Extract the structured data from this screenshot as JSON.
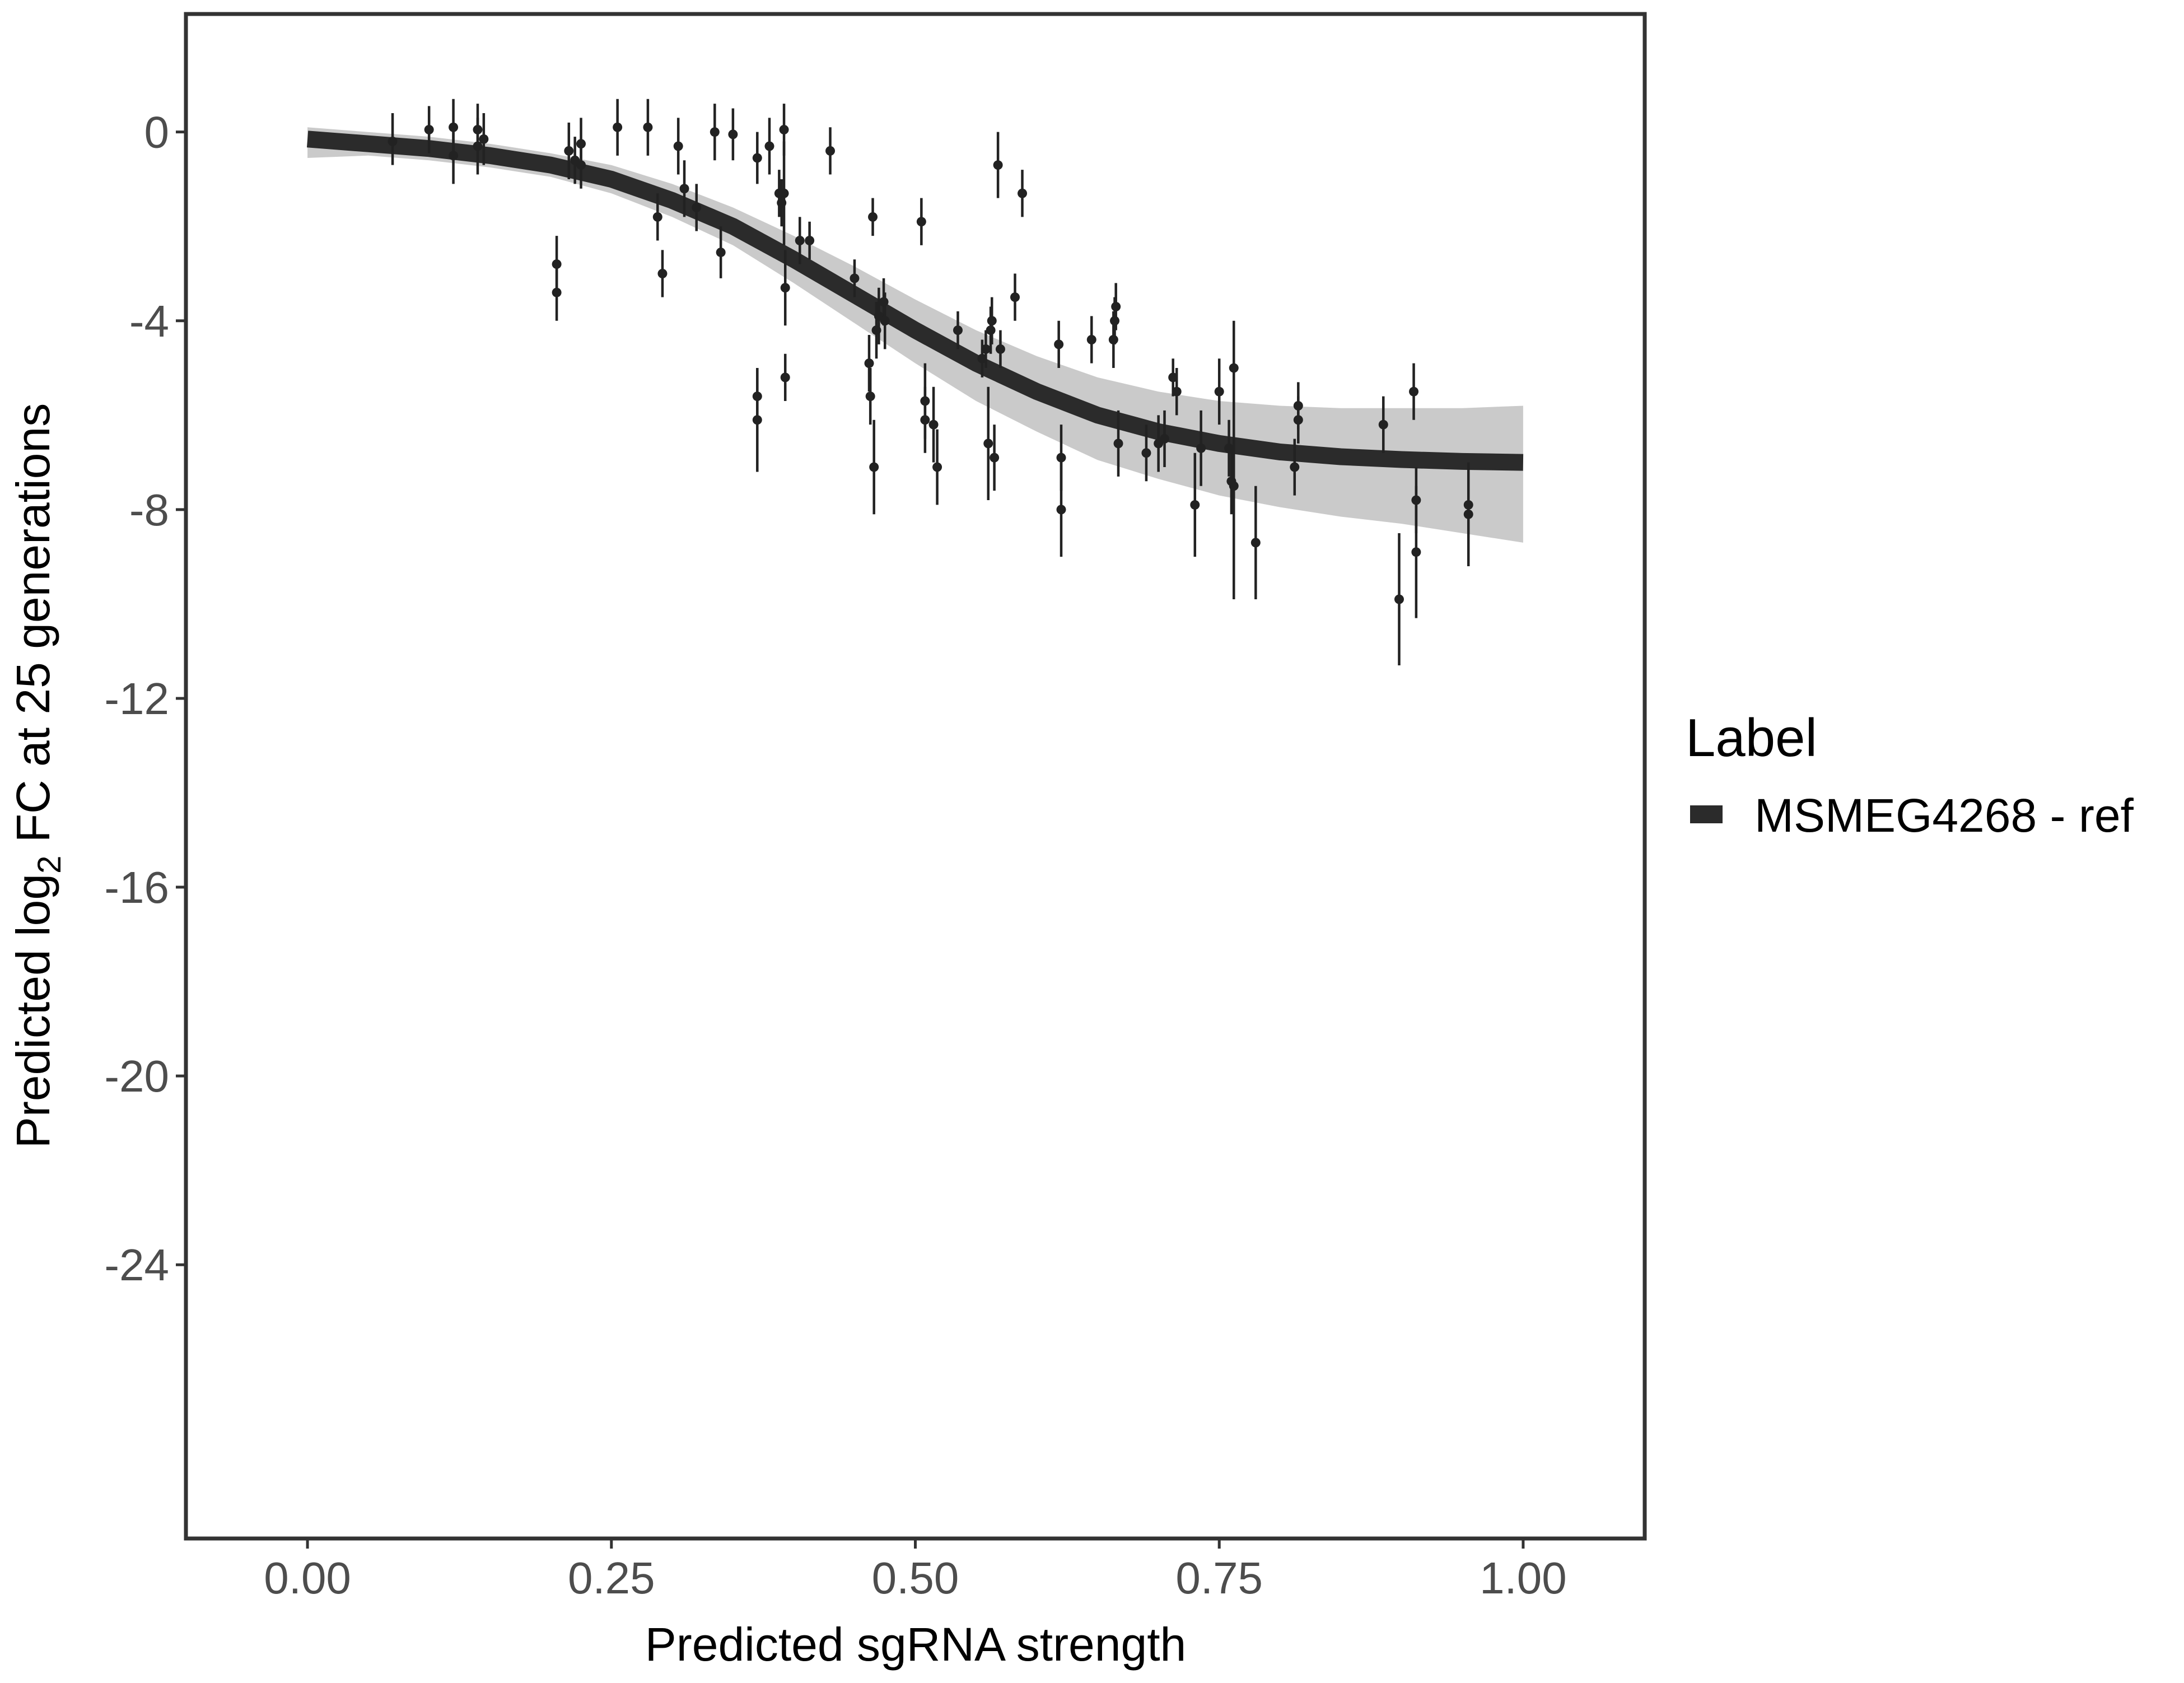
{
  "chart_data": {
    "type": "scatter",
    "title": "",
    "xlabel": "Predicted sgRNA strength",
    "ylabel": {
      "prefix": "Predicted  log",
      "subscript": "2",
      "suffix": " FC at 25 generations"
    },
    "xlim": [
      -0.1,
      1.1
    ],
    "ylim": [
      -29.8,
      2.5
    ],
    "x_ticks": [
      0.0,
      0.25,
      0.5,
      0.75,
      1.0
    ],
    "x_tick_labels": [
      "0.00",
      "0.25",
      "0.50",
      "0.75",
      "1.00"
    ],
    "y_ticks": [
      0,
      -4,
      -8,
      -12,
      -16,
      -20,
      -24
    ],
    "y_tick_labels": [
      "0",
      "-4",
      "-8",
      "-12",
      "-16",
      "-20",
      "-24"
    ],
    "grid": false,
    "legend": {
      "title": "Label",
      "position": "right",
      "entries": [
        {
          "label": "MSMEG4268 - ref",
          "color": "#2b2b2b"
        }
      ]
    },
    "colors": {
      "fit_line": "#2b2b2b",
      "ribbon": "#9e9e9e",
      "points": "#222222",
      "panel_border": "#333333",
      "tick_text": "#4d4d4d"
    },
    "fit_curve": {
      "name": "MSMEG4268 - ref",
      "x": [
        0.0,
        0.05,
        0.1,
        0.15,
        0.2,
        0.25,
        0.3,
        0.35,
        0.4,
        0.45,
        0.5,
        0.55,
        0.6,
        0.65,
        0.7,
        0.75,
        0.8,
        0.85,
        0.9,
        0.95,
        1.0
      ],
      "y": [
        -0.15,
        -0.25,
        -0.35,
        -0.5,
        -0.7,
        -1.0,
        -1.45,
        -2.0,
        -2.7,
        -3.45,
        -4.2,
        -4.9,
        -5.5,
        -6.0,
        -6.35,
        -6.6,
        -6.78,
        -6.88,
        -6.94,
        -6.98,
        -7.0
      ],
      "ribbon_lower": [
        -0.55,
        -0.5,
        -0.6,
        -0.75,
        -0.95,
        -1.3,
        -1.8,
        -2.4,
        -3.2,
        -4.05,
        -4.9,
        -5.7,
        -6.35,
        -6.95,
        -7.35,
        -7.7,
        -7.95,
        -8.15,
        -8.3,
        -8.5,
        -8.7
      ],
      "ribbon_upper": [
        0.1,
        0.0,
        -0.1,
        -0.25,
        -0.45,
        -0.7,
        -1.1,
        -1.6,
        -2.2,
        -2.85,
        -3.55,
        -4.2,
        -4.75,
        -5.2,
        -5.5,
        -5.7,
        -5.8,
        -5.85,
        -5.85,
        -5.85,
        -5.8
      ]
    },
    "points": [
      {
        "x": 0.07,
        "y": -0.2,
        "lo": -0.7,
        "hi": 0.4
      },
      {
        "x": 0.1,
        "y": 0.05,
        "lo": -0.45,
        "hi": 0.55
      },
      {
        "x": 0.12,
        "y": 0.1,
        "lo": -0.45,
        "hi": 0.7
      },
      {
        "x": 0.12,
        "y": -0.5,
        "lo": -1.1,
        "hi": 0.1
      },
      {
        "x": 0.14,
        "y": 0.05,
        "lo": -0.5,
        "hi": 0.6
      },
      {
        "x": 0.14,
        "y": -0.3,
        "lo": -0.9,
        "hi": 0.3
      },
      {
        "x": 0.145,
        "y": -0.15,
        "lo": -0.7,
        "hi": 0.4
      },
      {
        "x": 0.205,
        "y": -2.8,
        "lo": -3.4,
        "hi": -2.2
      },
      {
        "x": 0.205,
        "y": -3.4,
        "lo": -4.0,
        "hi": -2.8
      },
      {
        "x": 0.215,
        "y": -0.4,
        "lo": -1.0,
        "hi": 0.2
      },
      {
        "x": 0.22,
        "y": -0.6,
        "lo": -1.1,
        "hi": -0.1
      },
      {
        "x": 0.225,
        "y": -0.25,
        "lo": -0.8,
        "hi": 0.3
      },
      {
        "x": 0.225,
        "y": -0.7,
        "lo": -1.2,
        "hi": -0.2
      },
      {
        "x": 0.255,
        "y": 0.1,
        "lo": -0.5,
        "hi": 0.7
      },
      {
        "x": 0.28,
        "y": 0.1,
        "lo": -0.5,
        "hi": 0.7
      },
      {
        "x": 0.288,
        "y": -1.8,
        "lo": -2.3,
        "hi": -1.3
      },
      {
        "x": 0.292,
        "y": -3.0,
        "lo": -3.5,
        "hi": -2.5
      },
      {
        "x": 0.305,
        "y": -0.3,
        "lo": -0.9,
        "hi": 0.3
      },
      {
        "x": 0.31,
        "y": -1.2,
        "lo": -1.8,
        "hi": -0.6
      },
      {
        "x": 0.32,
        "y": -1.6,
        "lo": -2.1,
        "hi": -1.1
      },
      {
        "x": 0.335,
        "y": 0.0,
        "lo": -0.6,
        "hi": 0.6
      },
      {
        "x": 0.34,
        "y": -2.55,
        "lo": -3.1,
        "hi": -2.0
      },
      {
        "x": 0.35,
        "y": -0.05,
        "lo": -0.6,
        "hi": 0.5
      },
      {
        "x": 0.37,
        "y": -0.55,
        "lo": -1.1,
        "hi": 0.0
      },
      {
        "x": 0.37,
        "y": -5.6,
        "lo": -6.2,
        "hi": -5.0
      },
      {
        "x": 0.37,
        "y": -6.1,
        "lo": -7.2,
        "hi": -5.0
      },
      {
        "x": 0.38,
        "y": -0.3,
        "lo": -0.9,
        "hi": 0.3
      },
      {
        "x": 0.388,
        "y": -1.3,
        "lo": -1.8,
        "hi": -0.8
      },
      {
        "x": 0.39,
        "y": -1.5,
        "lo": -2.0,
        "hi": -1.0
      },
      {
        "x": 0.392,
        "y": -1.3,
        "lo": -2.4,
        "hi": -0.2
      },
      {
        "x": 0.392,
        "y": 0.05,
        "lo": -0.5,
        "hi": 0.6
      },
      {
        "x": 0.393,
        "y": -3.3,
        "lo": -4.1,
        "hi": -2.5
      },
      {
        "x": 0.393,
        "y": -5.2,
        "lo": -5.7,
        "hi": -4.7
      },
      {
        "x": 0.405,
        "y": -2.3,
        "lo": -2.8,
        "hi": -1.8
      },
      {
        "x": 0.413,
        "y": -2.3,
        "lo": -2.7,
        "hi": -1.9
      },
      {
        "x": 0.43,
        "y": -0.4,
        "lo": -0.9,
        "hi": 0.1
      },
      {
        "x": 0.45,
        "y": -3.1,
        "lo": -3.5,
        "hi": -2.7
      },
      {
        "x": 0.462,
        "y": -4.9,
        "lo": -5.5,
        "hi": -4.3
      },
      {
        "x": 0.463,
        "y": -5.6,
        "lo": -6.2,
        "hi": -5.0
      },
      {
        "x": 0.465,
        "y": -1.8,
        "lo": -2.2,
        "hi": -1.4
      },
      {
        "x": 0.466,
        "y": -7.1,
        "lo": -8.1,
        "hi": -6.1
      },
      {
        "x": 0.468,
        "y": -4.2,
        "lo": -4.8,
        "hi": -3.6
      },
      {
        "x": 0.47,
        "y": -3.9,
        "lo": -4.5,
        "hi": -3.3
      },
      {
        "x": 0.474,
        "y": -3.6,
        "lo": -4.1,
        "hi": -3.1
      },
      {
        "x": 0.475,
        "y": -4.0,
        "lo": -4.6,
        "hi": -3.4
      },
      {
        "x": 0.505,
        "y": -1.9,
        "lo": -2.4,
        "hi": -1.4
      },
      {
        "x": 0.508,
        "y": -5.7,
        "lo": -6.5,
        "hi": -4.9
      },
      {
        "x": 0.508,
        "y": -6.1,
        "lo": -6.8,
        "hi": -5.4
      },
      {
        "x": 0.515,
        "y": -6.2,
        "lo": -7.0,
        "hi": -5.4
      },
      {
        "x": 0.518,
        "y": -7.1,
        "lo": -7.9,
        "hi": -6.3
      },
      {
        "x": 0.535,
        "y": -4.2,
        "lo": -4.6,
        "hi": -3.8
      },
      {
        "x": 0.555,
        "y": -4.8,
        "lo": -5.2,
        "hi": -4.4
      },
      {
        "x": 0.558,
        "y": -4.6,
        "lo": -5.0,
        "hi": -4.2
      },
      {
        "x": 0.56,
        "y": -6.6,
        "lo": -7.8,
        "hi": -5.4
      },
      {
        "x": 0.562,
        "y": -4.2,
        "lo": -4.7,
        "hi": -3.7
      },
      {
        "x": 0.563,
        "y": -4.0,
        "lo": -4.5,
        "hi": -3.5
      },
      {
        "x": 0.565,
        "y": -6.9,
        "lo": -7.6,
        "hi": -6.2
      },
      {
        "x": 0.568,
        "y": -0.7,
        "lo": -1.4,
        "hi": 0.0
      },
      {
        "x": 0.57,
        "y": -4.6,
        "lo": -5.0,
        "hi": -4.2
      },
      {
        "x": 0.582,
        "y": -3.5,
        "lo": -4.0,
        "hi": -3.0
      },
      {
        "x": 0.588,
        "y": -1.3,
        "lo": -1.8,
        "hi": -0.8
      },
      {
        "x": 0.618,
        "y": -4.5,
        "lo": -5.0,
        "hi": -4.0
      },
      {
        "x": 0.62,
        "y": -6.9,
        "lo": -7.6,
        "hi": -6.2
      },
      {
        "x": 0.62,
        "y": -8.0,
        "lo": -9.0,
        "hi": -7.0
      },
      {
        "x": 0.645,
        "y": -4.4,
        "lo": -4.9,
        "hi": -3.9
      },
      {
        "x": 0.663,
        "y": -4.4,
        "lo": -5.0,
        "hi": -3.8
      },
      {
        "x": 0.664,
        "y": -4.0,
        "lo": -4.5,
        "hi": -3.5
      },
      {
        "x": 0.665,
        "y": -3.7,
        "lo": -4.2,
        "hi": -3.2
      },
      {
        "x": 0.667,
        "y": -6.6,
        "lo": -7.3,
        "hi": -5.9
      },
      {
        "x": 0.69,
        "y": -6.8,
        "lo": -7.4,
        "hi": -6.2
      },
      {
        "x": 0.7,
        "y": -6.6,
        "lo": -7.2,
        "hi": -6.0
      },
      {
        "x": 0.705,
        "y": -6.5,
        "lo": -7.1,
        "hi": -5.9
      },
      {
        "x": 0.712,
        "y": -5.2,
        "lo": -5.6,
        "hi": -4.8
      },
      {
        "x": 0.715,
        "y": -5.5,
        "lo": -6.0,
        "hi": -5.0
      },
      {
        "x": 0.73,
        "y": -7.9,
        "lo": -9.0,
        "hi": -6.8
      },
      {
        "x": 0.735,
        "y": -6.7,
        "lo": -7.5,
        "hi": -5.9
      },
      {
        "x": 0.75,
        "y": -5.5,
        "lo": -6.2,
        "hi": -4.8
      },
      {
        "x": 0.758,
        "y": -6.7,
        "lo": -7.3,
        "hi": -6.1
      },
      {
        "x": 0.76,
        "y": -7.4,
        "lo": -8.1,
        "hi": -6.7
      },
      {
        "x": 0.762,
        "y": -7.5,
        "lo": -9.9,
        "hi": -5.1
      },
      {
        "x": 0.762,
        "y": -5.0,
        "lo": -6.0,
        "hi": -4.0
      },
      {
        "x": 0.78,
        "y": -8.7,
        "lo": -9.9,
        "hi": -7.5
      },
      {
        "x": 0.812,
        "y": -7.1,
        "lo": -7.7,
        "hi": -6.5
      },
      {
        "x": 0.815,
        "y": -5.8,
        "lo": -6.3,
        "hi": -5.3
      },
      {
        "x": 0.815,
        "y": -6.1,
        "lo": -6.6,
        "hi": -5.6
      },
      {
        "x": 0.885,
        "y": -6.2,
        "lo": -6.8,
        "hi": -5.6
      },
      {
        "x": 0.898,
        "y": -9.9,
        "lo": -11.3,
        "hi": -8.5
      },
      {
        "x": 0.91,
        "y": -5.5,
        "lo": -6.1,
        "hi": -4.9
      },
      {
        "x": 0.912,
        "y": -7.8,
        "lo": -8.5,
        "hi": -7.1
      },
      {
        "x": 0.912,
        "y": -8.9,
        "lo": -10.3,
        "hi": -7.5
      },
      {
        "x": 0.955,
        "y": -7.9,
        "lo": -8.6,
        "hi": -7.2
      },
      {
        "x": 0.955,
        "y": -8.1,
        "lo": -9.2,
        "hi": -7.0
      }
    ]
  }
}
